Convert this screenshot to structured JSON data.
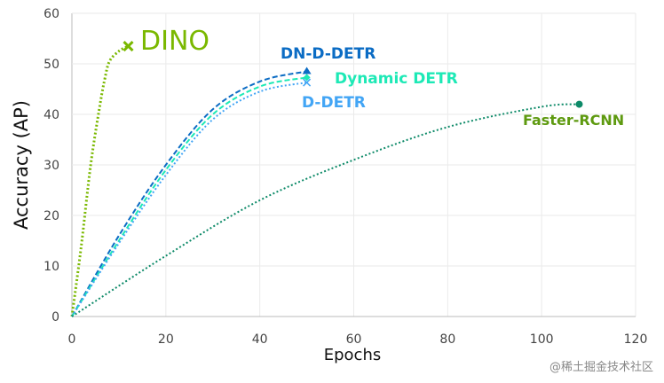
{
  "chart_data": {
    "type": "line",
    "title": "",
    "xlabel": "Epochs",
    "ylabel": "Accuracy (AP)",
    "xlim": [
      0,
      120
    ],
    "ylim": [
      0,
      60
    ],
    "xticks": [
      0,
      20,
      40,
      60,
      80,
      100,
      120
    ],
    "yticks": [
      0,
      10,
      20,
      30,
      40,
      50,
      60
    ],
    "grid": true,
    "series": [
      {
        "name": "DINO",
        "color": "#7ab800",
        "label_color": "#7ab800",
        "dash": "dotted",
        "marker": "x",
        "x": [
          0,
          2,
          4,
          6,
          7,
          8,
          10,
          12
        ],
        "y": [
          0,
          14,
          30,
          42,
          47,
          50.5,
          52.5,
          53.5
        ]
      },
      {
        "name": "DN-D-DETR",
        "color": "#0b6cc4",
        "label_color": "#0b6cc4",
        "dash": "dashed",
        "marker": "triangle",
        "x": [
          0,
          10,
          20,
          30,
          40,
          50
        ],
        "y": [
          0,
          16,
          30,
          41,
          46.5,
          48.5
        ]
      },
      {
        "name": "Dynamic DETR",
        "color": "#1de9b6",
        "label_color": "#1de9b6",
        "dash": "dashed",
        "marker": "diamond",
        "x": [
          0,
          10,
          20,
          30,
          40,
          50
        ],
        "y": [
          0,
          15,
          29,
          40,
          45.5,
          47.3
        ]
      },
      {
        "name": "D-DETR",
        "color": "#42a5f5",
        "label_color": "#42a5f5",
        "dash": "dotted",
        "marker": "x",
        "x": [
          0,
          10,
          20,
          30,
          40,
          50
        ],
        "y": [
          0,
          14.5,
          28,
          39,
          44.5,
          46.3
        ]
      },
      {
        "name": "Faster-RCNN",
        "color": "#0d8a68",
        "label_color": "#5e9a10",
        "dash": "dotted",
        "marker": "circle",
        "x": [
          0,
          20,
          40,
          60,
          80,
          100,
          108
        ],
        "y": [
          0,
          12,
          23,
          31,
          37.5,
          41.5,
          42
        ]
      }
    ]
  },
  "watermark": "@稀土掘金技术社区"
}
